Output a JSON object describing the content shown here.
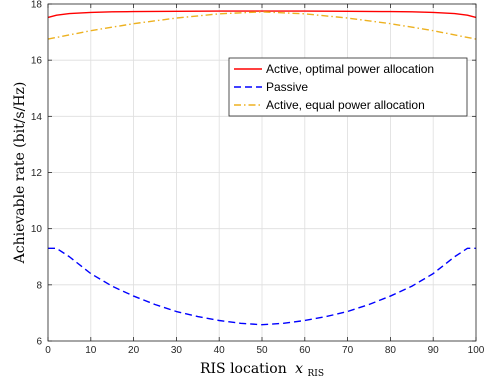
{
  "chart_data": {
    "type": "line",
    "xlabel": "RIS location",
    "xlabel_var": "x",
    "xlabel_sub": "RIS",
    "ylabel": "Achievable rate (bit/s/Hz)",
    "xlim": [
      0,
      100
    ],
    "ylim": [
      6,
      18
    ],
    "xticks": [
      0,
      10,
      20,
      30,
      40,
      50,
      60,
      70,
      80,
      90,
      100
    ],
    "yticks": [
      6,
      8,
      10,
      12,
      14,
      16,
      18
    ],
    "grid": true,
    "legend_position": "upper-right",
    "series": [
      {
        "name": "Active, optimal power allocation",
        "color": "#ff0000",
        "dash": "solid",
        "x": [
          0,
          2,
          5,
          10,
          15,
          20,
          30,
          40,
          50,
          60,
          70,
          80,
          85,
          90,
          95,
          98,
          100
        ],
        "y": [
          17.52,
          17.6,
          17.66,
          17.7,
          17.72,
          17.73,
          17.74,
          17.75,
          17.75,
          17.75,
          17.74,
          17.73,
          17.72,
          17.7,
          17.66,
          17.6,
          17.52
        ]
      },
      {
        "name": "Passive",
        "color": "#0000ff",
        "dash": "dashed",
        "x": [
          0,
          2,
          5,
          10,
          15,
          20,
          25,
          30,
          35,
          40,
          45,
          50,
          55,
          60,
          65,
          70,
          75,
          80,
          85,
          90,
          95,
          98,
          100
        ],
        "y": [
          9.3,
          9.3,
          9.0,
          8.4,
          7.95,
          7.6,
          7.3,
          7.05,
          6.87,
          6.73,
          6.63,
          6.58,
          6.63,
          6.73,
          6.87,
          7.05,
          7.3,
          7.6,
          7.95,
          8.4,
          9.0,
          9.3,
          9.3
        ]
      },
      {
        "name": "Active, equal power allocation",
        "color": "#edb120",
        "dash": "dashdot",
        "x": [
          0,
          10,
          20,
          30,
          40,
          50,
          60,
          70,
          80,
          90,
          100
        ],
        "y": [
          16.75,
          17.05,
          17.3,
          17.5,
          17.65,
          17.72,
          17.65,
          17.5,
          17.3,
          17.05,
          16.75
        ]
      }
    ]
  }
}
